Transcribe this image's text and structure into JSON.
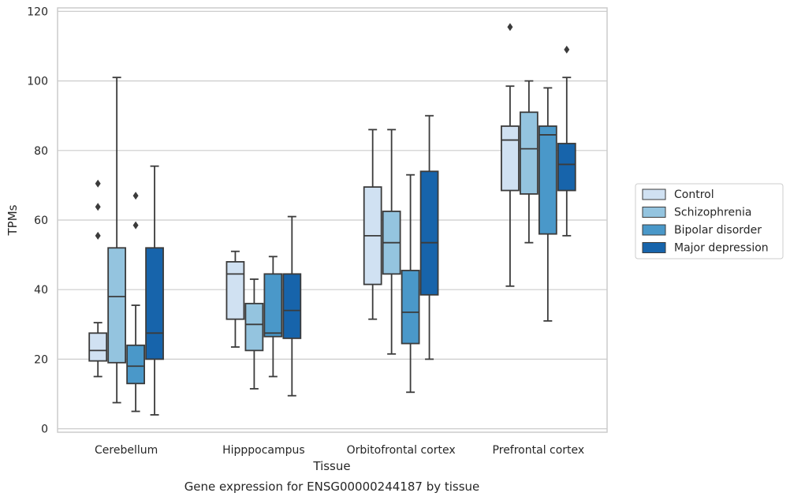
{
  "caption": "Gene expression for ENSG00000244187 by tissue",
  "chart_data": {
    "type": "box",
    "title": "",
    "xlabel": "Tissue",
    "ylabel": "TPMs",
    "ylim": [
      -1,
      121
    ],
    "yticks": [
      0,
      20,
      40,
      60,
      80,
      100,
      120
    ],
    "grid": "horizontal",
    "legend_position": "right",
    "categories": [
      "Cerebellum",
      "Hipppocampus",
      "Orbitofrontal cortex",
      "Prefrontal cortex"
    ],
    "series": [
      {
        "name": "Control",
        "color": "#d0e1f2",
        "boxes": [
          {
            "whisker_low": 15,
            "q1": 19.5,
            "median": 22.5,
            "q3": 27.5,
            "whisker_high": 30.5,
            "outliers": [
              55.5,
              63.8,
              70.5
            ]
          },
          {
            "whisker_low": 23.5,
            "q1": 31.5,
            "median": 44.5,
            "q3": 48,
            "whisker_high": 51,
            "outliers": []
          },
          {
            "whisker_low": 31.5,
            "q1": 41.5,
            "median": 55.5,
            "q3": 69.5,
            "whisker_high": 86,
            "outliers": []
          },
          {
            "whisker_low": 41,
            "q1": 68.5,
            "median": 83,
            "q3": 87,
            "whisker_high": 98.5,
            "outliers": [
              115.5
            ]
          }
        ]
      },
      {
        "name": "Schizophrenia",
        "color": "#94c4df",
        "boxes": [
          {
            "whisker_low": 7.5,
            "q1": 19,
            "median": 38,
            "q3": 52,
            "whisker_high": 101,
            "outliers": []
          },
          {
            "whisker_low": 11.5,
            "q1": 22.5,
            "median": 30,
            "q3": 36,
            "whisker_high": 43,
            "outliers": []
          },
          {
            "whisker_low": 21.5,
            "q1": 44.5,
            "median": 53.5,
            "q3": 62.5,
            "whisker_high": 86,
            "outliers": []
          },
          {
            "whisker_low": 53.5,
            "q1": 67.5,
            "median": 80.5,
            "q3": 91,
            "whisker_high": 100,
            "outliers": []
          }
        ]
      },
      {
        "name": "Bipolar disorder",
        "color": "#4a98c9",
        "boxes": [
          {
            "whisker_low": 5,
            "q1": 13,
            "median": 18,
            "q3": 24,
            "whisker_high": 35.5,
            "outliers": [
              58.5,
              67
            ]
          },
          {
            "whisker_low": 15,
            "q1": 26.5,
            "median": 27.5,
            "q3": 44.5,
            "whisker_high": 49.5,
            "outliers": []
          },
          {
            "whisker_low": 10.5,
            "q1": 24.5,
            "median": 33.5,
            "q3": 45.5,
            "whisker_high": 73,
            "outliers": []
          },
          {
            "whisker_low": 31,
            "q1": 56,
            "median": 84.5,
            "q3": 87,
            "whisker_high": 98,
            "outliers": []
          }
        ]
      },
      {
        "name": "Major depression",
        "color": "#1764ab",
        "boxes": [
          {
            "whisker_low": 4,
            "q1": 20,
            "median": 27.5,
            "q3": 52,
            "whisker_high": 75.5,
            "outliers": []
          },
          {
            "whisker_low": 9.5,
            "q1": 26,
            "median": 34,
            "q3": 44.5,
            "whisker_high": 61,
            "outliers": []
          },
          {
            "whisker_low": 20,
            "q1": 38.5,
            "median": 53.5,
            "q3": 74,
            "whisker_high": 90,
            "outliers": []
          },
          {
            "whisker_low": 55.5,
            "q1": 68.5,
            "median": 76,
            "q3": 82,
            "whisker_high": 101,
            "outliers": [
              109
            ]
          }
        ]
      }
    ]
  }
}
